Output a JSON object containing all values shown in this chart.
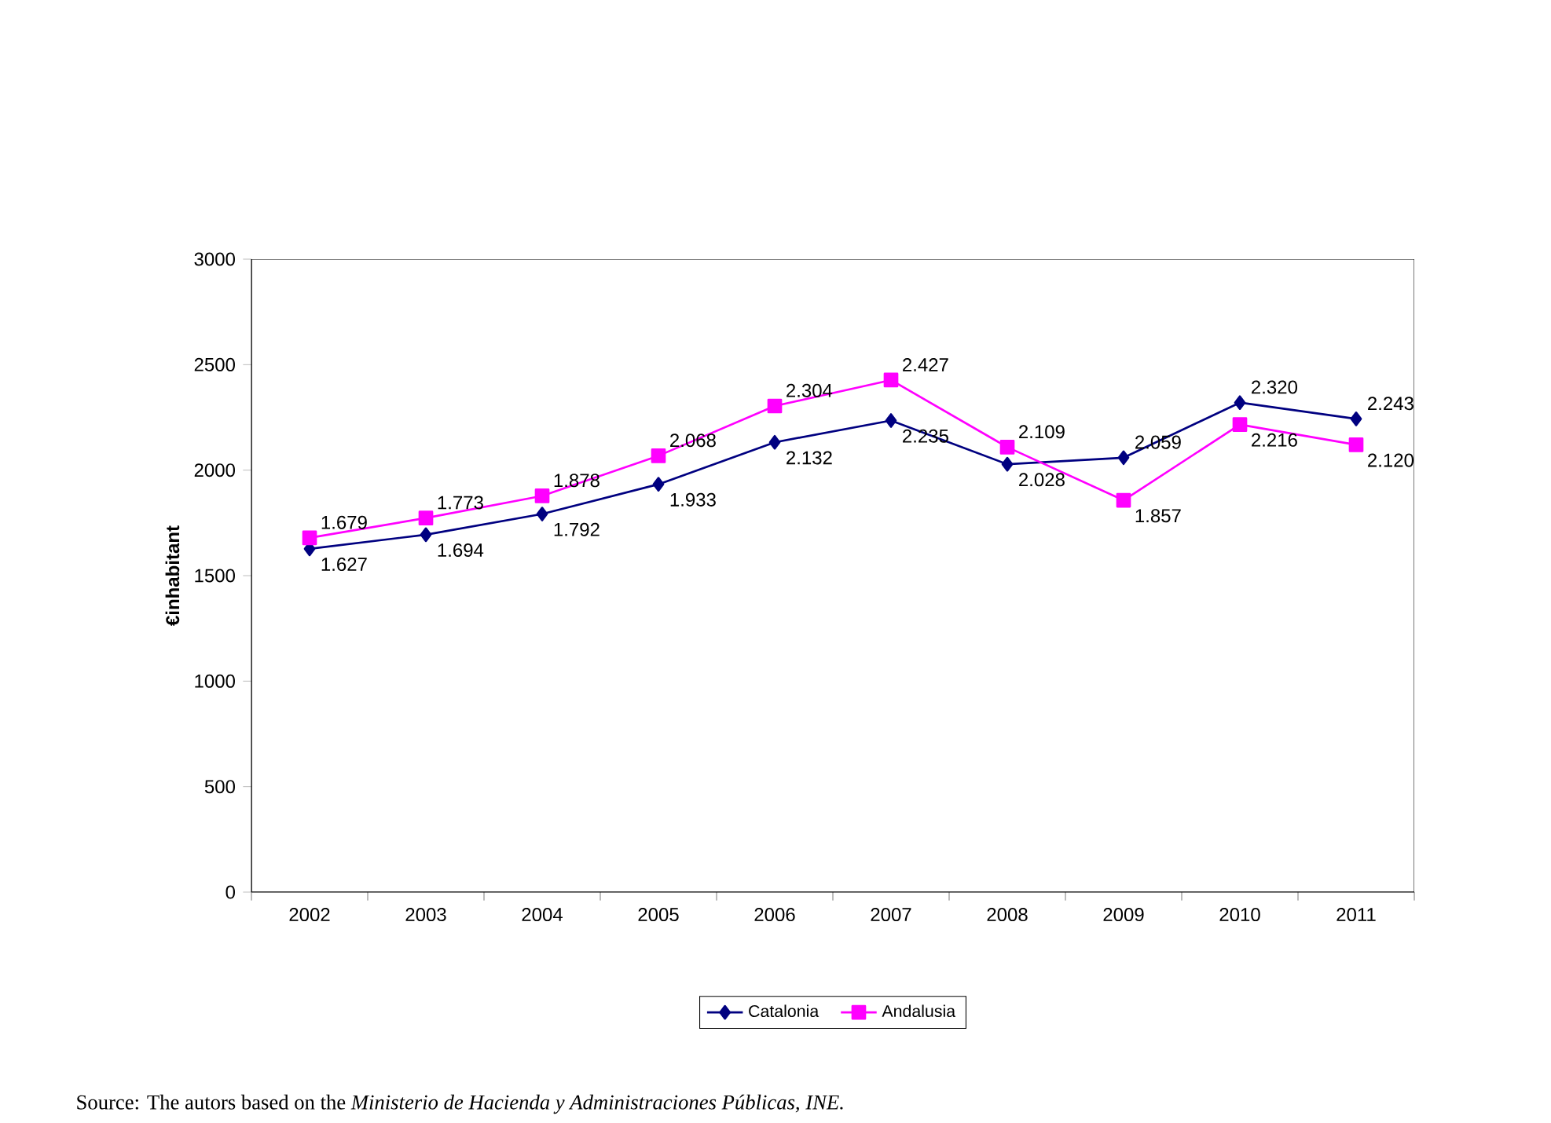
{
  "chart_data": {
    "type": "line",
    "ylabel": "€inhabitant",
    "categories": [
      "2002",
      "2003",
      "2004",
      "2005",
      "2006",
      "2007",
      "2008",
      "2009",
      "2010",
      "2011"
    ],
    "series": [
      {
        "name": "Catalonia",
        "color": "#000080",
        "marker": "diamond",
        "values": [
          1627,
          1694,
          1792,
          1933,
          2132,
          2235,
          2028,
          2059,
          2320,
          2243
        ],
        "value_labels": [
          "1.627",
          "1.694",
          "1.792",
          "1.933",
          "2.132",
          "2.235",
          "2.028",
          "2.059",
          "2.320",
          "2.243"
        ]
      },
      {
        "name": "Andalusia",
        "color": "#ff00ff",
        "marker": "square",
        "values": [
          1679,
          1773,
          1878,
          2068,
          2304,
          2427,
          2109,
          1857,
          2216,
          2120
        ],
        "value_labels": [
          "1.679",
          "1.773",
          "1.878",
          "2.068",
          "2.304",
          "2.427",
          "2.109",
          "1.857",
          "2.216",
          "2.120"
        ]
      }
    ],
    "ylim": [
      0,
      3000
    ],
    "yticks": [
      0,
      500,
      1000,
      1500,
      2000,
      2500,
      3000
    ],
    "grid": false,
    "legend": "bottom",
    "line_style": "solid",
    "annotations": [
      "Source: The autors based on the *Ministerio de Hacienda y Administraciones Públicas, INE.*"
    ]
  }
}
